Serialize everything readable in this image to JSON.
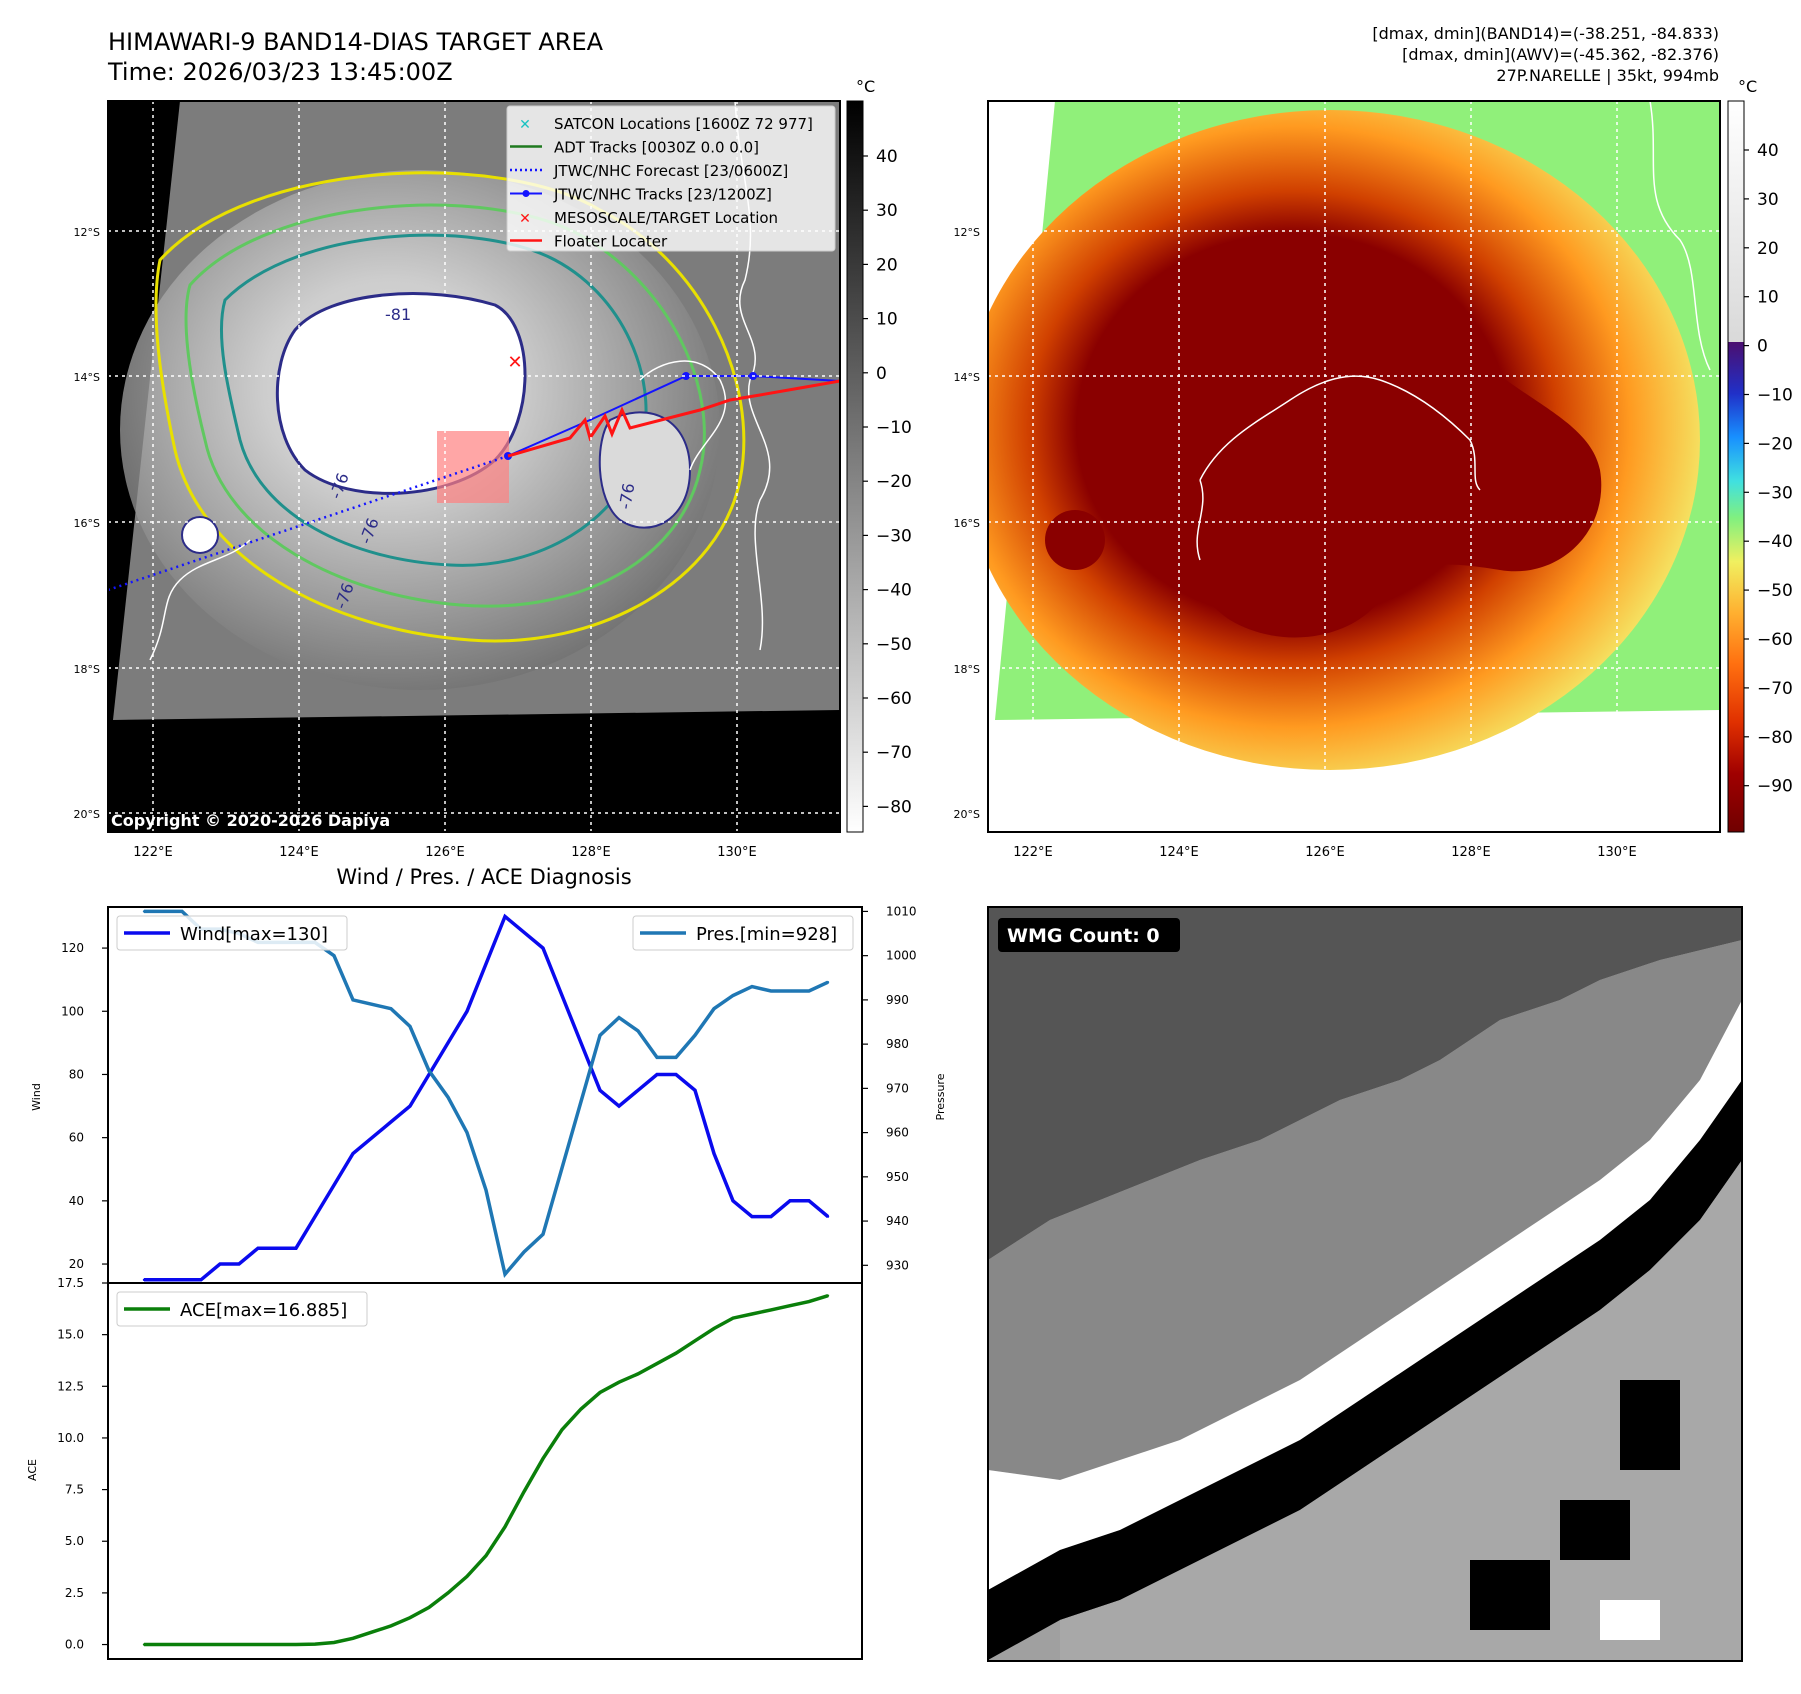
{
  "header": {
    "title": "HIMAWARI-9 BAND14-DIAS TARGET AREA",
    "time": "Time: 2026/03/23 13:45:00Z",
    "stats_band14": "[dmax, dmin](BAND14)=(-38.251, -84.833)",
    "stats_awv": "[dmax, dmin](AWV)=(-45.362, -82.376)",
    "storm_info": "27P.NARELLE | 35kt, 994mb"
  },
  "map": {
    "lat_labels": [
      "12°S",
      "14°S",
      "16°S",
      "18°S",
      "20°S"
    ],
    "lon_labels": [
      "122°E",
      "124°E",
      "126°E",
      "128°E",
      "130°E"
    ],
    "copyright": "Copyright © 2020-2026 Dapiya",
    "contour_labels": [
      "-81",
      "-76",
      "-76",
      "-76",
      "-76"
    ],
    "legend": [
      {
        "label": "SATCON Locations [1600Z 72 977]",
        "color": "#19c2c2",
        "marker": "x"
      },
      {
        "label": "ADT Tracks [0030Z 0.0 0.0]",
        "color": "#1f7a1f",
        "marker": "line"
      },
      {
        "label": "JTWC/NHC Forecast [23/0600Z]",
        "color": "#1414ff",
        "marker": "dotted"
      },
      {
        "label": "JTWC/NHC Tracks [23/1200Z]",
        "color": "#1414ff",
        "marker": "dot-line"
      },
      {
        "label": "MESOSCALE/TARGET Location",
        "color": "#ff1414",
        "marker": "x"
      },
      {
        "label": "Floater Locater",
        "color": "#ff1414",
        "marker": "line"
      }
    ],
    "cbar_unit": "°C",
    "cbar_gray_ticks": [
      "40",
      "30",
      "20",
      "10",
      "0",
      "−10",
      "−20",
      "−30",
      "−40",
      "−50",
      "−60",
      "−70",
      "−80"
    ],
    "cbar_color_ticks": [
      "40",
      "30",
      "20",
      "10",
      "0",
      "−10",
      "−20",
      "−30",
      "−40",
      "−50",
      "−60",
      "−70",
      "−80",
      "−90"
    ]
  },
  "colors": {
    "wind": "#0a0aee",
    "pressure": "#1f77b4",
    "ace": "#0a7f0a"
  },
  "chart_data": [
    {
      "type": "line",
      "title": "Wind / Pres. / ACE Diagnosis",
      "ylabel": "Wind",
      "ylabel_right": "Pressure",
      "ylim": [
        14,
        133
      ],
      "ylim_right": [
        926,
        1011
      ],
      "yticks": [
        20,
        40,
        60,
        80,
        100,
        120
      ],
      "yticks_right": [
        930,
        940,
        950,
        960,
        970,
        980,
        990,
        1000,
        1010
      ],
      "series": [
        {
          "name": "Wind[max=130]",
          "axis": "left",
          "values": [
            15,
            15,
            15,
            15,
            20,
            20,
            25,
            25,
            25,
            35,
            45,
            55,
            60,
            65,
            70,
            80,
            90,
            100,
            115,
            130,
            125,
            120,
            105,
            90,
            75,
            70,
            75,
            80,
            80,
            75,
            55,
            40,
            35,
            35,
            40,
            40,
            35
          ]
        },
        {
          "name": "Pres.[min=928]",
          "axis": "right",
          "values": [
            1010,
            1010,
            1010,
            1006,
            1006,
            1005,
            1003,
            1003,
            1003,
            1003,
            1000,
            990,
            989,
            988,
            984,
            974,
            968,
            960,
            947,
            928,
            933,
            937,
            952,
            967,
            982,
            986,
            983,
            977,
            977,
            982,
            988,
            991,
            993,
            992,
            992,
            992,
            994
          ]
        }
      ]
    },
    {
      "type": "line",
      "ylabel": "ACE",
      "ylim": [
        -0.7,
        17.5
      ],
      "yticks": [
        0.0,
        2.5,
        5.0,
        7.5,
        10.0,
        12.5,
        15.0,
        17.5
      ],
      "series": [
        {
          "name": "ACE[max=16.885]",
          "values": [
            0,
            0,
            0,
            0,
            0,
            0,
            0,
            0,
            0,
            0.02,
            0.1,
            0.3,
            0.6,
            0.9,
            1.3,
            1.8,
            2.5,
            3.3,
            4.3,
            5.7,
            7.4,
            9.0,
            10.4,
            11.4,
            12.2,
            12.7,
            13.1,
            13.6,
            14.1,
            14.7,
            15.3,
            15.8,
            16.0,
            16.2,
            16.4,
            16.6,
            16.885
          ]
        }
      ]
    }
  ],
  "wmg": {
    "label": "WMG Count: 0"
  }
}
